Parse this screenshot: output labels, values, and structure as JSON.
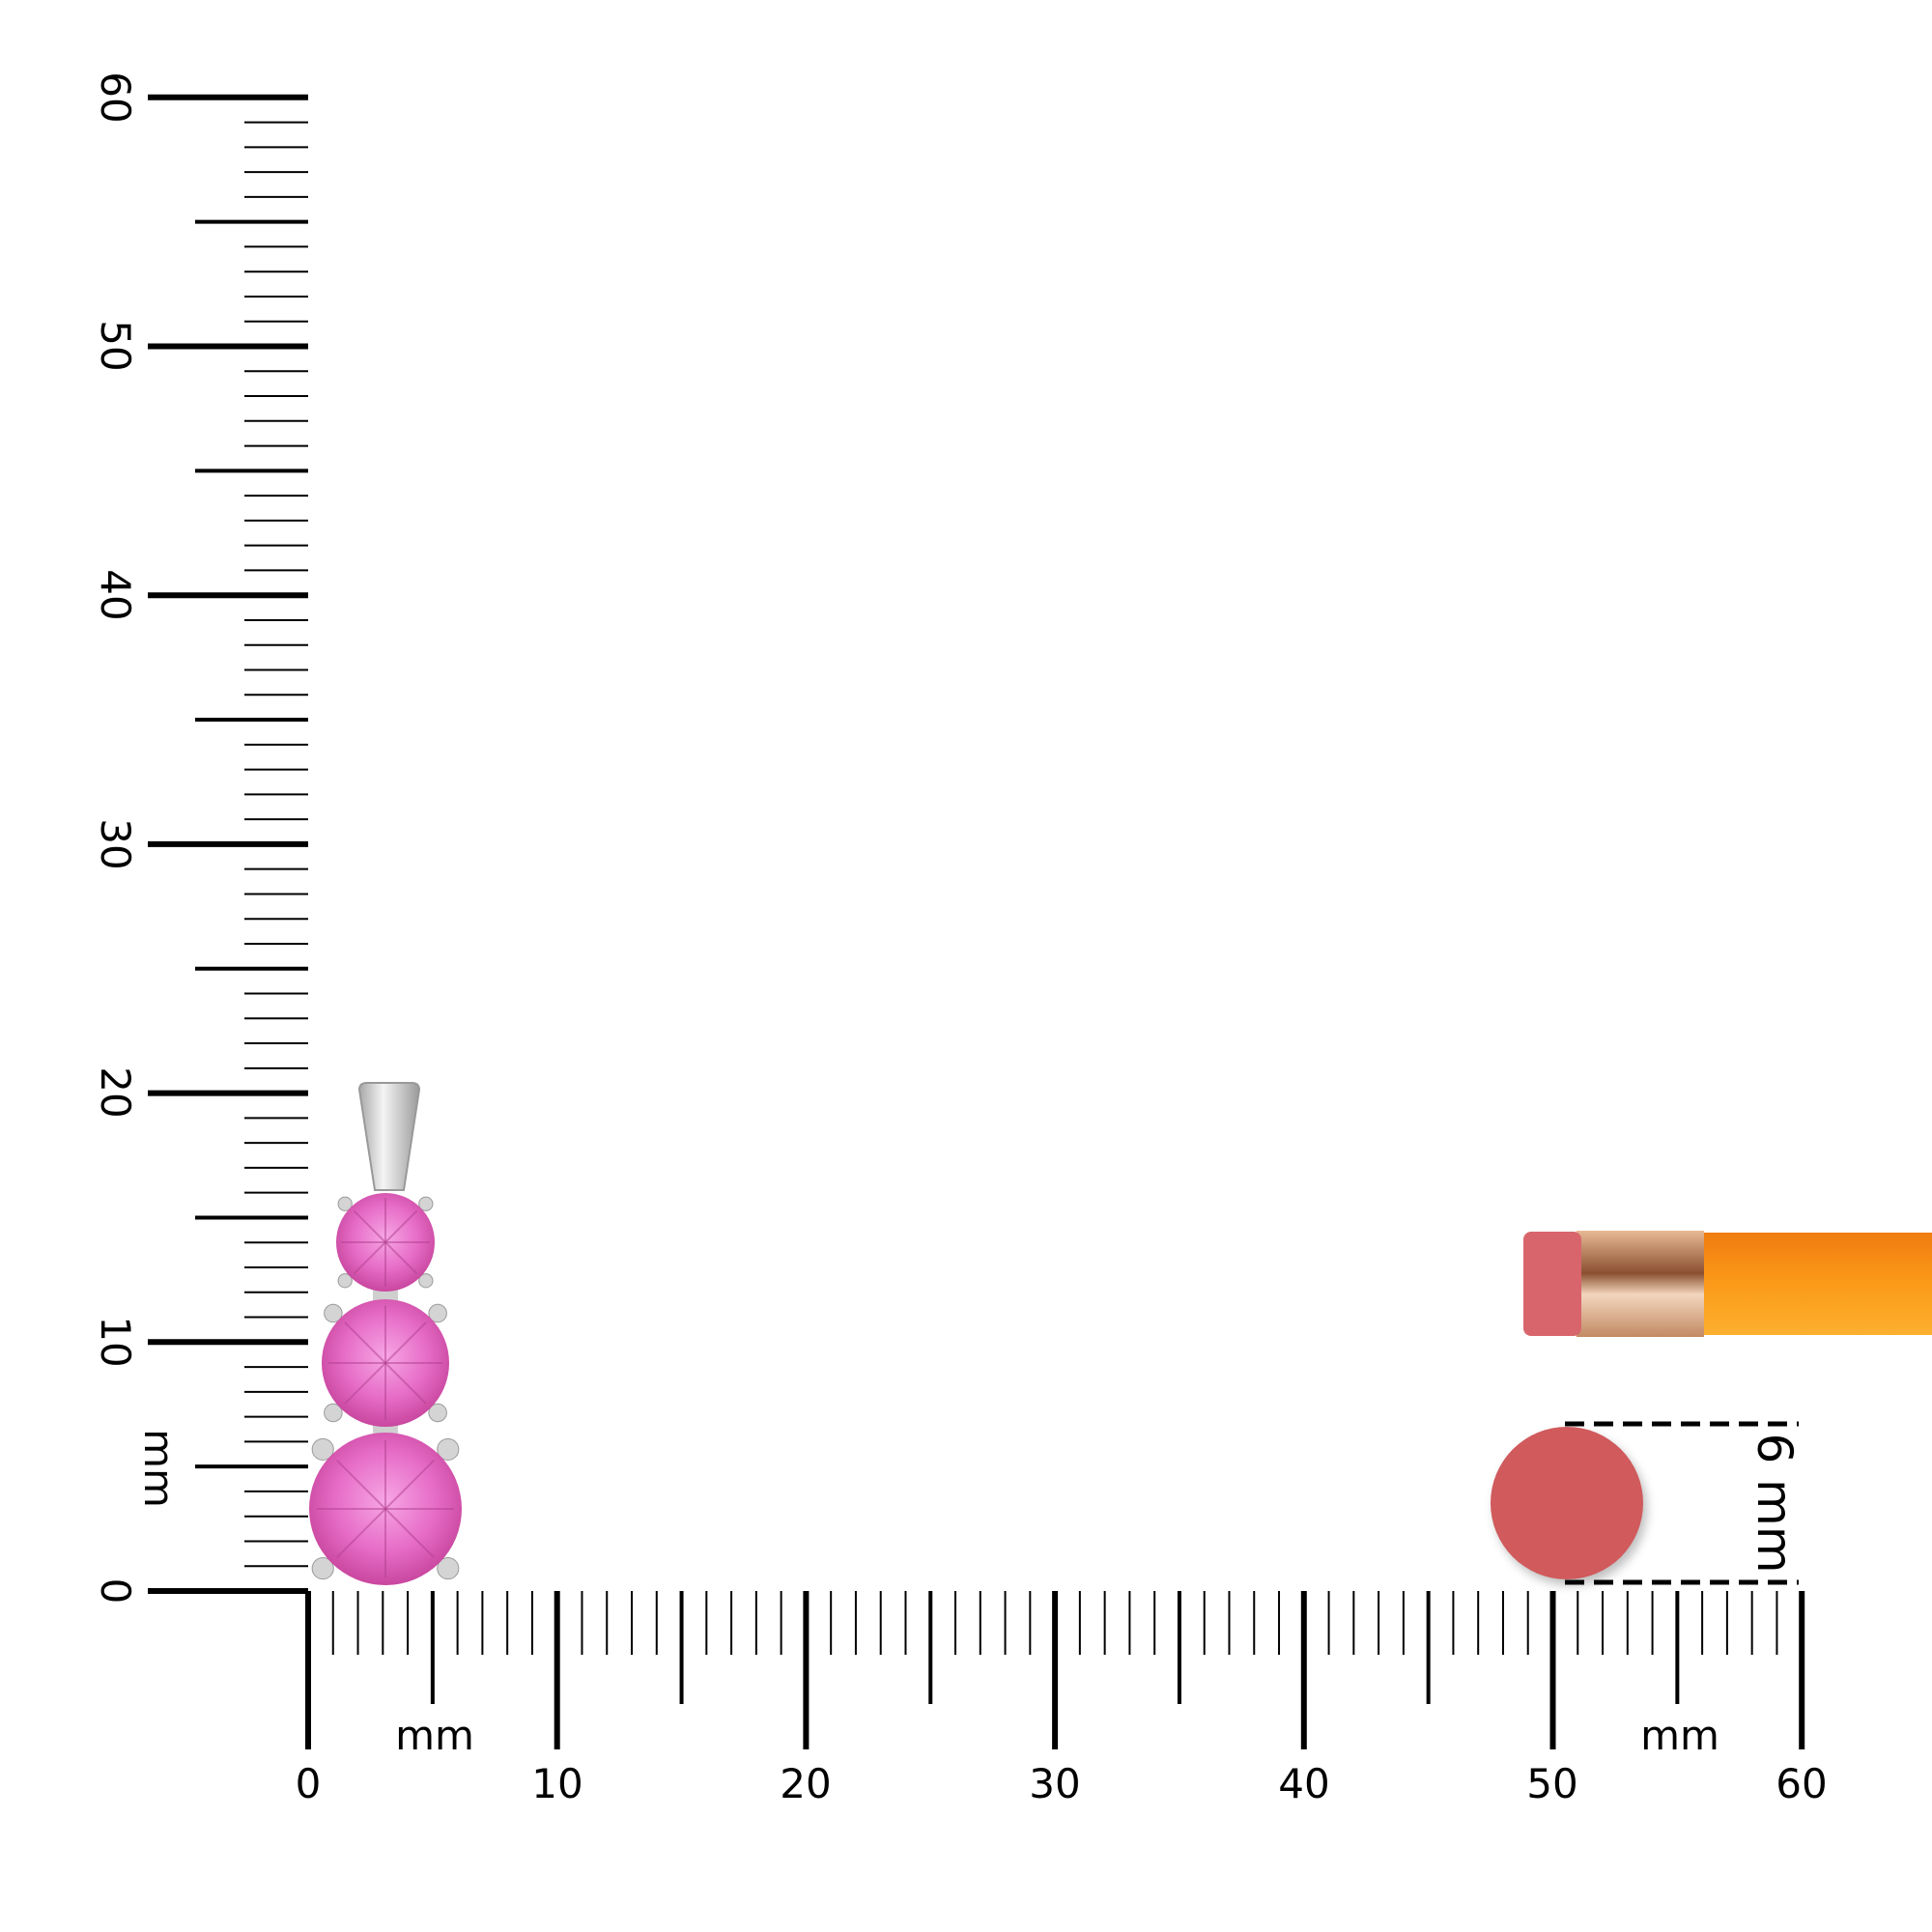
{
  "vertical_ruler": {
    "unit": "mm",
    "labels": [
      "0",
      "10",
      "20",
      "30",
      "40",
      "50",
      "60"
    ]
  },
  "horizontal_ruler": {
    "unit_left": "mm",
    "unit_right": "mm",
    "labels": [
      "0",
      "10",
      "20",
      "30",
      "40",
      "50",
      "60"
    ]
  },
  "scale_reference": {
    "label": "6 mm"
  },
  "colors": {
    "stone": "#e86cc8",
    "metal": "#d8d8d8",
    "eraser": "#d05a5c",
    "ferrule": "#d9a27a",
    "pencil_body": "#fb9a18"
  }
}
